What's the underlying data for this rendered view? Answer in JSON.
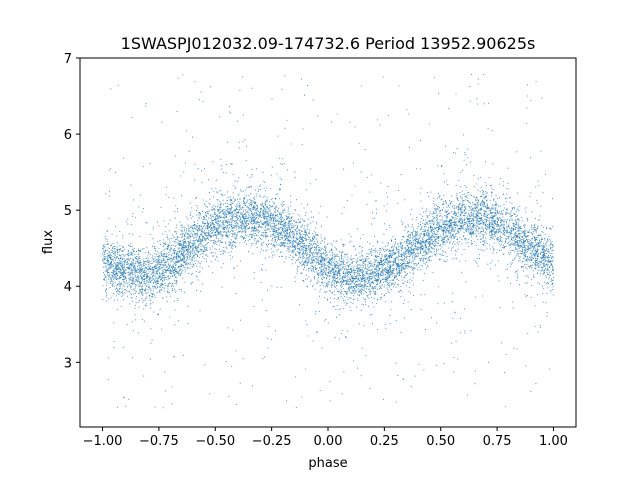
{
  "chart_data": {
    "type": "scatter",
    "title": "1SWASPJ012032.09-174732.6 Period 13952.90625s",
    "xlabel": "phase",
    "ylabel": "flux",
    "xlim": [
      -1.1,
      1.1
    ],
    "ylim": [
      2.15,
      7.0
    ],
    "xticks": [
      -1.0,
      -0.75,
      -0.5,
      -0.25,
      0.0,
      0.25,
      0.5,
      0.75,
      1.0
    ],
    "xtick_labels": [
      "−1.00",
      "−0.75",
      "−0.50",
      "−0.25",
      "0.00",
      "0.25",
      "0.50",
      "0.75",
      "1.00"
    ],
    "yticks": [
      3,
      4,
      5,
      6,
      7
    ],
    "ytick_labels": [
      "3",
      "4",
      "5",
      "6",
      "7"
    ],
    "grid": false,
    "series": [
      {
        "color": "#1f77b4",
        "phase_range": [
          -1.0,
          1.0
        ],
        "curve_phase": [
          -1.0,
          -0.9,
          -0.8,
          -0.7,
          -0.6,
          -0.5,
          -0.4,
          -0.3,
          -0.2,
          -0.1,
          0.0,
          0.1,
          0.2,
          0.3,
          0.4,
          0.5,
          0.6,
          0.7,
          0.8,
          0.9,
          1.0
        ],
        "curve_flux": [
          4.3,
          4.2,
          4.15,
          4.3,
          4.55,
          4.78,
          4.88,
          4.9,
          4.75,
          4.5,
          4.25,
          4.1,
          4.15,
          4.3,
          4.55,
          4.75,
          4.88,
          4.9,
          4.75,
          4.5,
          4.3
        ]
      }
    ]
  }
}
